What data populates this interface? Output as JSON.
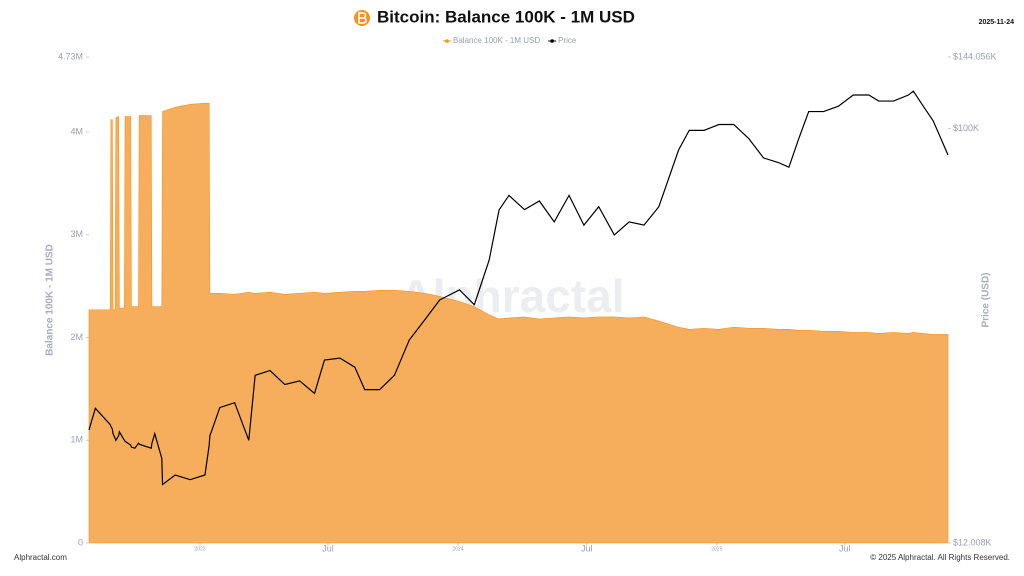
{
  "chart_data": {
    "type": "area-line",
    "title": "Bitcoin: Balance 100K - 1M USD",
    "date": "2025-11-24",
    "y_label": "Balance 100K - 1M USD",
    "y2_label": "Price (USD)",
    "watermark": "Alphractal",
    "source": "Alphractal.com",
    "copyright": "© 2025 Alphractal. All Rights Reserved.",
    "legend_position": "top",
    "y2_log": true,
    "x": [
      "2022-07-28",
      "2022-08-06",
      "2022-08-27",
      "2022-08-28",
      "2022-08-30",
      "2022-08-31",
      "2022-09-03",
      "2022-09-04",
      "2022-09-08",
      "2022-09-09",
      "2022-09-16",
      "2022-09-17",
      "2022-09-25",
      "2022-09-26",
      "2022-10-01",
      "2022-10-06",
      "2022-10-07",
      "2022-10-24",
      "2022-10-25",
      "2022-10-29",
      "2022-11-08",
      "2022-11-09",
      "2022-11-27",
      "2022-12-18",
      "2023-01-08",
      "2023-01-14",
      "2023-01-15",
      "2023-01-18",
      "2023-01-29",
      "2023-02-19",
      "2023-03-11",
      "2023-03-20",
      "2023-04-10",
      "2023-05-01",
      "2023-05-22",
      "2023-06-12",
      "2023-06-26",
      "2023-07-18",
      "2023-08-08",
      "2023-08-22",
      "2023-09-12",
      "2023-10-03",
      "2023-10-24",
      "2023-11-15",
      "2023-12-06",
      "2024-01-03",
      "2024-01-24",
      "2024-02-14",
      "2024-02-28",
      "2024-03-13",
      "2024-04-04",
      "2024-04-25",
      "2024-05-16",
      "2024-06-06",
      "2024-06-27",
      "2024-07-18",
      "2024-08-09",
      "2024-08-30",
      "2024-09-20",
      "2024-10-11",
      "2024-11-08",
      "2024-11-23",
      "2024-12-14",
      "2025-01-04",
      "2025-01-25",
      "2025-02-15",
      "2025-03-08",
      "2025-03-29",
      "2025-04-13",
      "2025-04-27",
      "2025-05-11",
      "2025-06-01",
      "2025-06-22",
      "2025-07-13",
      "2025-08-04",
      "2025-08-18",
      "2025-09-08",
      "2025-09-29",
      "2025-10-06",
      "2025-10-20",
      "2025-11-03",
      "2025-11-24"
    ],
    "series": [
      {
        "name": "Balance 100K - 1M USD",
        "color": "#f7931a",
        "fill": "#f7ae5c",
        "kind": "area",
        "values": [
          2270000,
          2270000,
          2270000,
          4120000,
          4120000,
          2270000,
          2270000,
          4140000,
          4150000,
          2280000,
          2290000,
          4150000,
          4150000,
          2300000,
          2300000,
          2300000,
          4160000,
          4160000,
          2300000,
          2300000,
          2300000,
          4200000,
          4240000,
          4270000,
          4280000,
          4280000,
          2430000,
          2430000,
          2430000,
          2420000,
          2440000,
          2430000,
          2440000,
          2420000,
          2430000,
          2440000,
          2430000,
          2440000,
          2450000,
          2450000,
          2460000,
          2460000,
          2450000,
          2430000,
          2400000,
          2350000,
          2300000,
          2220000,
          2180000,
          2190000,
          2200000,
          2180000,
          2190000,
          2200000,
          2190000,
          2200000,
          2200000,
          2190000,
          2200000,
          2160000,
          2100000,
          2080000,
          2090000,
          2080000,
          2100000,
          2090000,
          2090000,
          2080000,
          2080000,
          2070000,
          2070000,
          2060000,
          2060000,
          2050000,
          2050000,
          2040000,
          2050000,
          2040000,
          2050000,
          2040000,
          2030000,
          2030000
        ]
      },
      {
        "name": "Price",
        "color": "#000000",
        "kind": "line",
        "axis": "y2",
        "values": [
          21400,
          23900,
          22000,
          21800,
          21500,
          21000,
          20500,
          20300,
          20800,
          21200,
          20300,
          20200,
          19800,
          19600,
          19500,
          20000,
          19900,
          19500,
          20000,
          21000,
          18500,
          16200,
          17000,
          16600,
          17000,
          19800,
          20800,
          21400,
          24000,
          24600,
          20300,
          28300,
          29000,
          27000,
          27500,
          25800,
          30600,
          30900,
          29500,
          26300,
          26300,
          28300,
          33900,
          37600,
          41600,
          43800,
          40600,
          51000,
          65900,
          71000,
          66000,
          69000,
          62000,
          71000,
          61000,
          67000,
          58000,
          62000,
          61000,
          67000,
          89600,
          99000,
          99000,
          102000,
          102000,
          95000,
          86000,
          84000,
          82000,
          95000,
          109000,
          109000,
          112000,
          118600,
          118600,
          115000,
          115000,
          118600,
          121000,
          112000,
          104000,
          87300
        ]
      }
    ],
    "xlim": [
      "2022-07-28",
      "2025-11-24"
    ],
    "xticks": [
      {
        "value": "2023-01-01",
        "label": "2023"
      },
      {
        "value": "2023-07-01",
        "label": "Jul"
      },
      {
        "value": "2024-01-01",
        "label": "2024"
      },
      {
        "value": "2024-07-01",
        "label": "Jul"
      },
      {
        "value": "2025-01-01",
        "label": "2025"
      },
      {
        "value": "2025-07-01",
        "label": "Jul"
      }
    ],
    "ylim": [
      0,
      4730000
    ],
    "yticks": [
      0,
      {
        "value": 1000000,
        "label": "1M"
      },
      {
        "value": 2000000,
        "label": "2M"
      },
      {
        "value": 3000000,
        "label": "3M"
      },
      {
        "value": 4000000,
        "label": "4M"
      },
      {
        "value": 4730000,
        "label": "4.73M"
      }
    ],
    "y2lim": [
      12008,
      144056
    ],
    "y2ticks": [
      {
        "value": 12008,
        "label": "$12.008K"
      },
      {
        "value": 100000,
        "label": "$100K"
      },
      {
        "value": 144056,
        "label": "$144.056K"
      }
    ]
  }
}
